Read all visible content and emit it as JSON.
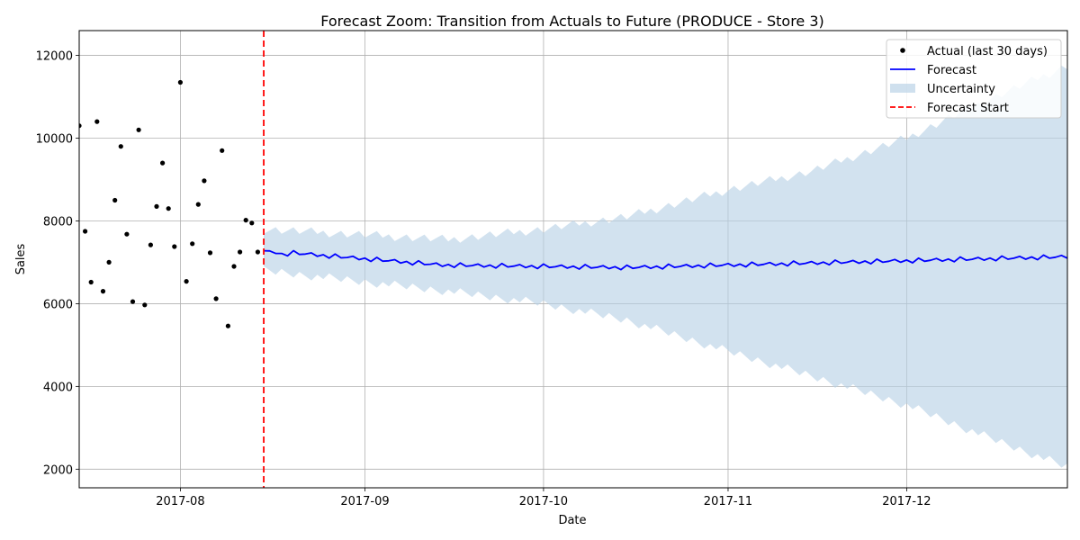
{
  "chart_data": {
    "type": "line",
    "title": "Forecast Zoom: Transition from Actuals to Future (PRODUCE - Store 3)",
    "xlabel": "Date",
    "ylabel": "Sales",
    "xlim": [
      "2017-07-15",
      "2017-12-28"
    ],
    "ylim": [
      1550,
      12600
    ],
    "x_ticks": [
      {
        "date": "2017-08-01",
        "label": "2017-08"
      },
      {
        "date": "2017-09-01",
        "label": "2017-09"
      },
      {
        "date": "2017-10-01",
        "label": "2017-10"
      },
      {
        "date": "2017-11-01",
        "label": "2017-11"
      },
      {
        "date": "2017-12-01",
        "label": "2017-12"
      }
    ],
    "y_ticks": [
      2000,
      4000,
      6000,
      8000,
      10000,
      12000
    ],
    "grid": true,
    "legend_position": "top-right",
    "forecast_start": "2017-08-15",
    "colors": {
      "actual": "#000000",
      "forecast": "#0000ff",
      "uncertainty": "#b6d0e5",
      "forecast_start": "#ff0000",
      "grid": "#b0b0b0"
    },
    "series": [
      {
        "name": "Actual (last 30 days)",
        "style": "points",
        "x": [
          "2017-07-15",
          "2017-07-16",
          "2017-07-17",
          "2017-07-18",
          "2017-07-19",
          "2017-07-20",
          "2017-07-21",
          "2017-07-22",
          "2017-07-23",
          "2017-07-24",
          "2017-07-25",
          "2017-07-26",
          "2017-07-27",
          "2017-07-28",
          "2017-07-29",
          "2017-07-30",
          "2017-07-31",
          "2017-08-01",
          "2017-08-02",
          "2017-08-03",
          "2017-08-04",
          "2017-08-05",
          "2017-08-06",
          "2017-08-07",
          "2017-08-08",
          "2017-08-09",
          "2017-08-10",
          "2017-08-11",
          "2017-08-12",
          "2017-08-13",
          "2017-08-14",
          "2017-08-15"
        ],
        "values": [
          10300,
          7750,
          6520,
          10400,
          6300,
          7000,
          8500,
          9800,
          7680,
          6050,
          10200,
          5970,
          7420,
          8350,
          9400,
          8300,
          7380,
          11350,
          6540,
          7450,
          8400,
          8970,
          7230,
          6120,
          9700,
          5460,
          6900,
          7250,
          8020,
          7950,
          7250,
          null
        ]
      },
      {
        "name": "Forecast",
        "style": "line",
        "start_date": "2017-08-15",
        "end_date": "2017-12-28",
        "trend_start": 7280,
        "trend_mid": 6870,
        "trend_end": 7130,
        "weekly_pattern": [
          0,
          40,
          -30,
          20,
          -50,
          60,
          -20
        ]
      },
      {
        "name": "Uncertainty",
        "style": "band",
        "upper": [
          {
            "date": "2017-08-15",
            "value": 7800
          },
          {
            "date": "2017-09-15",
            "value": 7550
          },
          {
            "date": "2017-10-01",
            "value": 7800
          },
          {
            "date": "2017-10-15",
            "value": 8100
          },
          {
            "date": "2017-11-01",
            "value": 8750
          },
          {
            "date": "2017-11-15",
            "value": 9200
          },
          {
            "date": "2017-12-01",
            "value": 10000
          },
          {
            "date": "2017-12-15",
            "value": 10950
          },
          {
            "date": "2017-12-28",
            "value": 11750
          }
        ],
        "lower": [
          {
            "date": "2017-08-15",
            "value": 6800
          },
          {
            "date": "2017-09-15",
            "value": 6300
          },
          {
            "date": "2017-10-01",
            "value": 6000
          },
          {
            "date": "2017-10-15",
            "value": 5600
          },
          {
            "date": "2017-11-01",
            "value": 4850
          },
          {
            "date": "2017-11-15",
            "value": 4250
          },
          {
            "date": "2017-12-01",
            "value": 3550
          },
          {
            "date": "2017-12-15",
            "value": 2750
          },
          {
            "date": "2017-12-28",
            "value": 2050
          }
        ]
      },
      {
        "name": "Forecast Start",
        "style": "vline",
        "date": "2017-08-15"
      }
    ]
  }
}
